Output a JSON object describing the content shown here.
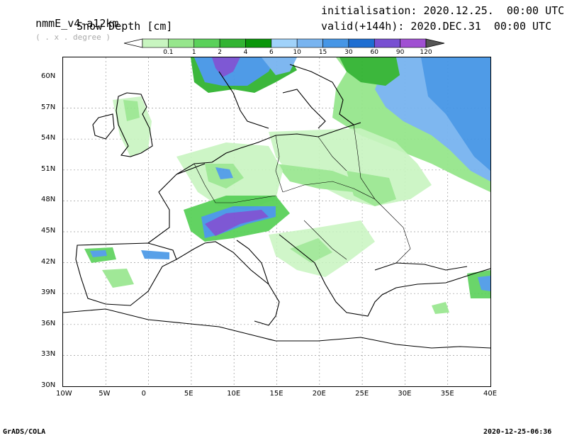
{
  "header": {
    "model": "nmmE_v4-a12km",
    "grid_note": "( . x . degree )",
    "variable": "Snow Depth [cm]",
    "init": "initialisation: 2020.12.25.  00:00 UTC",
    "valid": "valid(+144h): 2020.DEC.31  00:00 UTC"
  },
  "legend": {
    "labels": [
      "0.1",
      "1",
      "2",
      "4",
      "6",
      "10",
      "15",
      "30",
      "60",
      "90",
      "120"
    ],
    "colors": [
      "#c8f5c0",
      "#96e68c",
      "#5ad15a",
      "#32b432",
      "#0a960a",
      "#a0d2fa",
      "#78b4f0",
      "#4696e6",
      "#1e6ed2",
      "#7850d2",
      "#a050d2"
    ]
  },
  "axes": {
    "lat_labels": [
      "60N",
      "57N",
      "54N",
      "51N",
      "48N",
      "45N",
      "42N",
      "39N",
      "36N",
      "33N",
      "30N"
    ],
    "lon_labels": [
      "10W",
      "5W",
      "0",
      "5E",
      "10E",
      "15E",
      "20E",
      "25E",
      "30E",
      "35E",
      "40E"
    ]
  },
  "footer": {
    "left": "GrADS/COLA",
    "right": "2020-12-25-06:36"
  }
}
